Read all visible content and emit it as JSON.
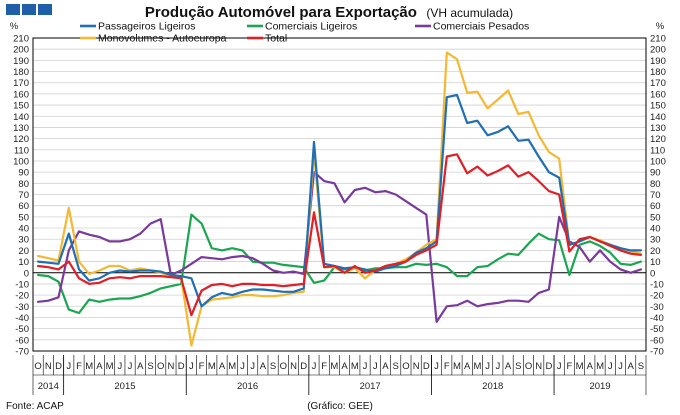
{
  "header": {
    "logo_squares": 3
  },
  "chart_data": {
    "type": "line",
    "title": "Produção Automóvel para Exportação",
    "subtitle": "(VH acumulada)",
    "y_unit": "%",
    "ylim": [
      -70,
      210
    ],
    "yticks": [
      -70,
      -60,
      -50,
      -40,
      -30,
      -20,
      -10,
      0,
      10,
      20,
      30,
      40,
      50,
      60,
      70,
      80,
      90,
      100,
      110,
      120,
      130,
      140,
      150,
      160,
      170,
      180,
      190,
      200,
      210
    ],
    "grid": true,
    "legend_position": "top",
    "x_month_labels": [
      "O",
      "N",
      "D",
      "J",
      "F",
      "M",
      "A",
      "M",
      "J",
      "J",
      "A",
      "S",
      "O",
      "N",
      "D",
      "J",
      "F",
      "M",
      "A",
      "M",
      "J",
      "J",
      "A",
      "S",
      "O",
      "N",
      "D",
      "J",
      "F",
      "M",
      "A",
      "M",
      "J",
      "J",
      "A",
      "S",
      "O",
      "N",
      "D",
      "J",
      "F",
      "M",
      "A",
      "M",
      "J",
      "J",
      "A",
      "S",
      "O",
      "N",
      "D",
      "J",
      "F",
      "M",
      "A",
      "M",
      "J",
      "J",
      "A",
      "S"
    ],
    "x_year_groups": [
      {
        "label": "2014",
        "start": 0,
        "end": 2
      },
      {
        "label": "2015",
        "start": 3,
        "end": 14
      },
      {
        "label": "2016",
        "start": 15,
        "end": 26
      },
      {
        "label": "2017",
        "start": 27,
        "end": 38
      },
      {
        "label": "2018",
        "start": 39,
        "end": 50
      },
      {
        "label": "2019",
        "start": 51,
        "end": 59
      }
    ],
    "series": [
      {
        "name": "Passageiros Ligeiros",
        "color": "#1f6fb4",
        "values": [
          10,
          9,
          8,
          35,
          3,
          -7,
          -5,
          0,
          2,
          1,
          2,
          2,
          1,
          -2,
          -3,
          -5,
          -30,
          -22,
          -18,
          -20,
          -17,
          -15,
          -15,
          -16,
          -17,
          -17,
          -14,
          117,
          8,
          6,
          4,
          5,
          3,
          1,
          4,
          6,
          10,
          18,
          22,
          28,
          157,
          159,
          134,
          136,
          123,
          126,
          131,
          118,
          119,
          104,
          90,
          85,
          25,
          28,
          32,
          28,
          25,
          22,
          20,
          20
        ]
      },
      {
        "name": "Comerciais Ligeiros",
        "color": "#1aa650",
        "values": [
          -2,
          -3,
          -8,
          -33,
          -36,
          -24,
          -26,
          -24,
          -23,
          -23,
          -21,
          -18,
          -14,
          -12,
          -10,
          52,
          44,
          22,
          20,
          22,
          20,
          10,
          9,
          9,
          7,
          6,
          5,
          -9,
          -7,
          5,
          3,
          5,
          2,
          4,
          4,
          5,
          5,
          8,
          7,
          8,
          5,
          -3,
          -3,
          5,
          6,
          12,
          17,
          16,
          26,
          35,
          30,
          29,
          -2,
          25,
          28,
          24,
          18,
          8,
          7,
          10
        ]
      },
      {
        "name": "Comerciais Pesados",
        "color": "#7a3a9c",
        "values": [
          -26,
          -25,
          -22,
          20,
          37,
          34,
          32,
          28,
          28,
          30,
          35,
          44,
          48,
          -2,
          2,
          8,
          14,
          13,
          12,
          14,
          15,
          13,
          8,
          2,
          0,
          1,
          -1,
          90,
          82,
          80,
          63,
          74,
          76,
          72,
          73,
          70,
          64,
          58,
          52,
          -44,
          -30,
          -29,
          -25,
          -30,
          -28,
          -27,
          -25,
          -25,
          -26,
          -18,
          -15,
          50,
          28,
          23,
          10,
          20,
          10,
          3,
          0,
          3
        ]
      },
      {
        "name": "Monovolumes - Autoeuropa",
        "color": "#f4b832",
        "values": [
          15,
          13,
          11,
          58,
          10,
          -1,
          2,
          6,
          6,
          2,
          4,
          2,
          0,
          -3,
          -4,
          -65,
          -30,
          -24,
          -23,
          -22,
          -20,
          -20,
          -21,
          -21,
          -20,
          -18,
          -17,
          108,
          5,
          5,
          0,
          4,
          -5,
          2,
          6,
          8,
          12,
          18,
          25,
          30,
          197,
          191,
          161,
          162,
          147,
          155,
          163,
          142,
          144,
          123,
          108,
          102,
          25,
          28,
          32,
          29,
          25,
          22,
          19,
          17
        ]
      },
      {
        "name": "Total",
        "color": "#e01f26",
        "values": [
          6,
          5,
          3,
          10,
          -5,
          -10,
          -9,
          -5,
          -4,
          -5,
          -3,
          -3,
          -3,
          -4,
          -5,
          -38,
          -16,
          -11,
          -10,
          -12,
          -10,
          -10,
          -11,
          -11,
          -12,
          -11,
          -10,
          54,
          5,
          6,
          0,
          6,
          0,
          2,
          6,
          8,
          10,
          16,
          20,
          25,
          104,
          106,
          89,
          95,
          87,
          91,
          96,
          86,
          90,
          82,
          73,
          70,
          19,
          30,
          32,
          28,
          24,
          20,
          17,
          16
        ]
      }
    ]
  },
  "footer": {
    "source": "Fonte: ACAP",
    "credit": "(Gráfico: GEE)"
  }
}
